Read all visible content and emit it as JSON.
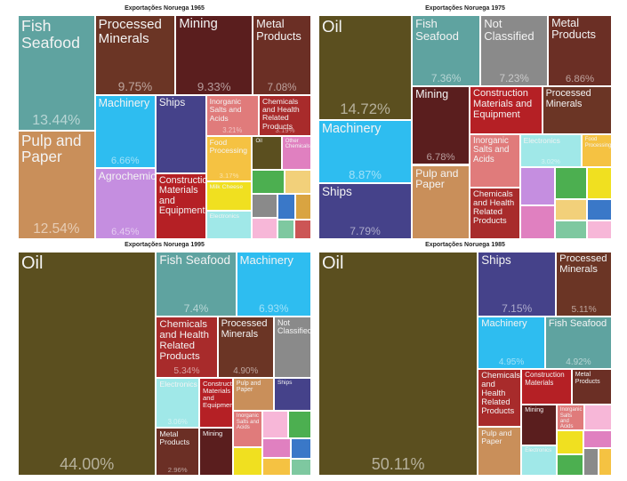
{
  "chart_data": [
    {
      "type": "treemap",
      "title": "Exportações Noruega 1965",
      "categories": [
        "Fish Seafood",
        "Pulp and Paper",
        "Processed Minerals",
        "Mining",
        "Metal Products",
        "Machinery",
        "Agrochemicals",
        "Ships",
        "Construction Materials and Equipment",
        "Inorganic Salts and Acids",
        "Chemicals and Health Related Products",
        "Food Processing",
        "Milk Cheese",
        "Electronics",
        "Oil",
        "Other Chemicals",
        null,
        null,
        null,
        null,
        null,
        null,
        null,
        null
      ],
      "values": [
        13.44,
        12.54,
        9.75,
        9.33,
        7.08,
        6.66,
        6.45,
        5.91,
        5.0,
        3.21,
        3.19,
        3.17,
        2.0,
        2.0,
        1.5,
        1.5,
        1.2,
        1.0,
        0.9,
        0.8,
        0.7,
        0.6,
        0.5,
        0.5
      ],
      "value_labels": [
        "13.44%",
        "12.54%",
        "9.75%",
        "9.33%",
        "7.08%",
        "6.66%",
        "6.45%",
        null,
        null,
        "3.21%",
        "3.19%",
        "3.17%",
        null,
        null,
        null,
        null,
        null,
        null,
        null,
        null,
        null,
        null,
        null,
        null
      ],
      "colors": [
        "#5fa3a0",
        "#c98f5a",
        "#6b3525",
        "#5a1e1e",
        "#6b2f25",
        "#2ebdf0",
        "#c58ee0",
        "#45428a",
        "#b52025",
        "#e07b7b",
        "#a82b2b",
        "#f5c242",
        "#f0e020",
        "#a0e8e8",
        "#5b4f1f",
        "#e080c0",
        "#4caf50",
        "#f2d07a",
        "#8a8a8a",
        "#f7b7d8",
        "#3a78c8",
        "#d9a441",
        "#7ec8a0",
        "#c55"
      ]
    },
    {
      "type": "treemap",
      "title": "Exportações Noruega 1975",
      "categories": [
        "Oil",
        "Machinery",
        "Ships",
        "Fish Seafood",
        "Not Classified",
        "Metal Products",
        "Mining",
        "Pulp and Paper",
        "Construction Materials and Equipment",
        "Processed Minerals",
        "Inorganic Salts and Acids",
        "Chemicals and Health Related Products",
        "Electronics",
        "Food Processing",
        null,
        null,
        null,
        null,
        null,
        null,
        null,
        null
      ],
      "values": [
        14.72,
        8.87,
        7.79,
        7.36,
        7.23,
        6.86,
        6.78,
        6.43,
        5.2,
        5.0,
        4.0,
        3.9,
        3.02,
        1.5,
        2.0,
        1.8,
        1.5,
        1.2,
        1.0,
        0.9,
        0.8,
        0.7
      ],
      "value_labels": [
        "14.72%",
        "8.87%",
        "7.79%",
        "7.36%",
        "7.23%",
        "6.86%",
        "6.78%",
        null,
        null,
        null,
        null,
        null,
        "3.02%",
        null,
        null,
        null,
        null,
        null,
        null,
        null,
        null,
        null
      ],
      "colors": [
        "#5b4f1f",
        "#2ebdf0",
        "#45428a",
        "#5fa3a0",
        "#8a8a8a",
        "#6b2f25",
        "#5a1e1e",
        "#c98f5a",
        "#b52025",
        "#6b3525",
        "#e07b7b",
        "#a82b2b",
        "#a0e8e8",
        "#f5c242",
        "#c58ee0",
        "#e080c0",
        "#4caf50",
        "#f0e020",
        "#f2d07a",
        "#7ec8a0",
        "#3a78c8",
        "#f7b7d8"
      ]
    },
    {
      "type": "treemap",
      "title": "Exportações Noruega 1995",
      "categories": [
        "Oil",
        "Fish Seafood",
        "Machinery",
        "Chemicals and Health Related Products",
        "Processed Minerals",
        "Not Classified",
        "Electronics",
        "Metal Products",
        "Construction Materials and Equipment",
        "Mining",
        "Pulp and Paper",
        "Ships",
        "Inorganic Salts and Acids",
        null,
        null,
        null,
        null,
        null,
        null,
        null
      ],
      "values": [
        44.0,
        7.4,
        6.93,
        5.34,
        4.9,
        3.24,
        3.06,
        2.96,
        2.39,
        2.3,
        1.94,
        1.77,
        1.5,
        1.2,
        1.0,
        0.9,
        0.8,
        0.7,
        0.6,
        0.5
      ],
      "value_labels": [
        "44.00%",
        "7.4%",
        "6.93%",
        "5.34%",
        "4.90%",
        null,
        "3.06%",
        "2.96%",
        null,
        null,
        null,
        null,
        null,
        null,
        null,
        null,
        null,
        null,
        null,
        null
      ],
      "colors": [
        "#5b4f1f",
        "#5fa3a0",
        "#2ebdf0",
        "#a82b2b",
        "#6b3525",
        "#8a8a8a",
        "#a0e8e8",
        "#6b2f25",
        "#b52025",
        "#5a1e1e",
        "#c98f5a",
        "#45428a",
        "#e07b7b",
        "#f0e020",
        "#f7b7d8",
        "#4caf50",
        "#e080c0",
        "#f5c242",
        "#3a78c8",
        "#7ec8a0"
      ]
    },
    {
      "type": "treemap",
      "title": "Exportações Noruega 1985",
      "categories": [
        "Oil",
        "Ships",
        "Processed Minerals",
        "Machinery",
        "Fish Seafood",
        "Chemicals and Health Related Products",
        "Pulp and Paper",
        "Construction Materials",
        "Metal Products",
        "Mining",
        "Electronics",
        "Inorganic Salts and Acids",
        null,
        null,
        null,
        null,
        null,
        null
      ],
      "values": [
        50.11,
        7.15,
        5.11,
        4.95,
        4.92,
        3.5,
        3.0,
        2.5,
        2.0,
        2.0,
        1.5,
        1.0,
        1.0,
        0.9,
        0.8,
        0.7,
        0.6,
        0.5
      ],
      "value_labels": [
        "50.11%",
        "7.15%",
        "5.11%",
        "4.95%",
        "4.92%",
        null,
        null,
        null,
        null,
        null,
        null,
        null,
        null,
        null,
        null,
        null,
        null,
        null
      ],
      "colors": [
        "#5b4f1f",
        "#45428a",
        "#6b3525",
        "#2ebdf0",
        "#5fa3a0",
        "#a82b2b",
        "#c98f5a",
        "#b52025",
        "#6b2f25",
        "#5a1e1e",
        "#a0e8e8",
        "#e07b7b",
        "#f7b7d8",
        "#f0e020",
        "#4caf50",
        "#e080c0",
        "#8a8a8a",
        "#f5c242"
      ]
    }
  ]
}
